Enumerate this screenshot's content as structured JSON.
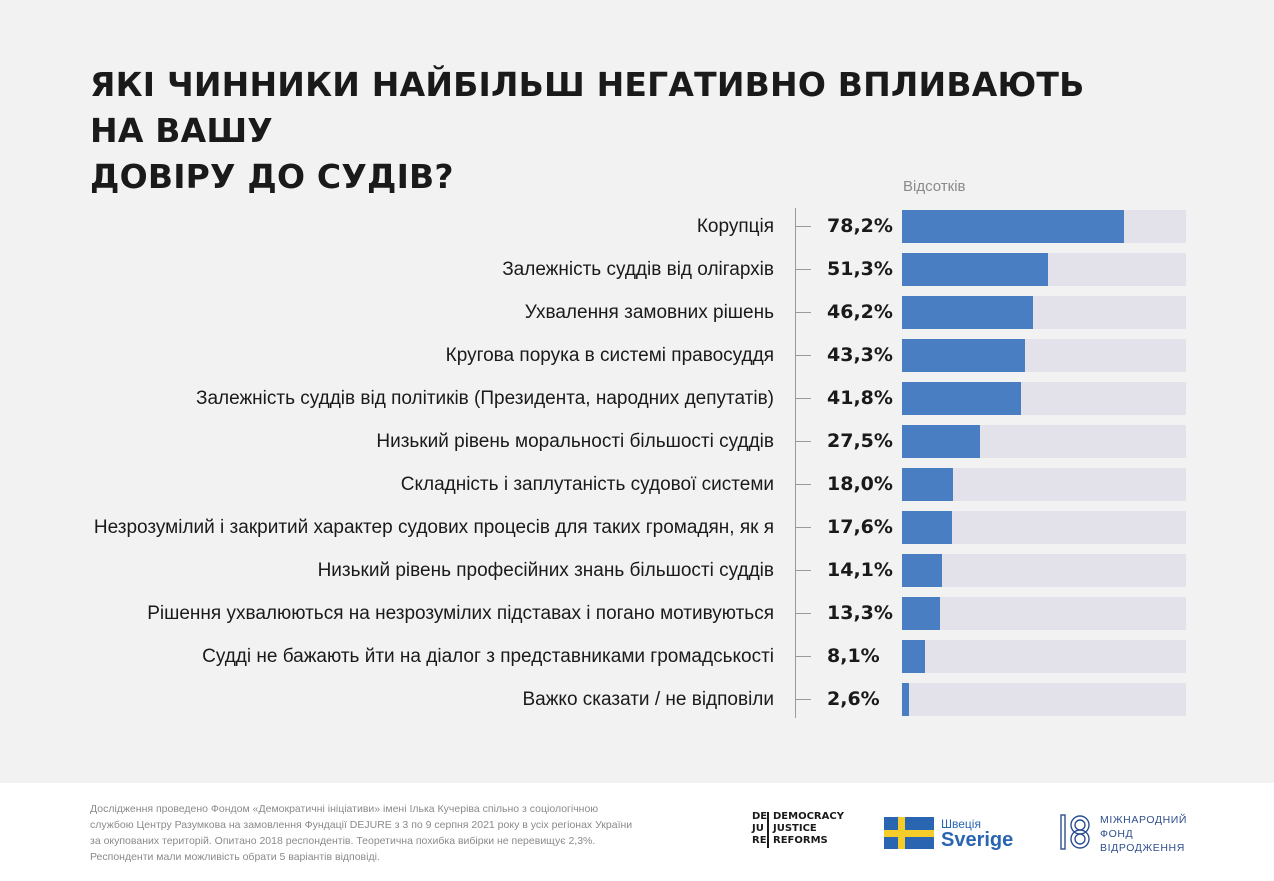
{
  "title_lines": [
    "ЯКІ ЧИННИКИ НАЙБІЛЬШ НЕГАТИВНО ВПЛИВАЮТЬ НА ВАШУ",
    "ДОВІРУ ДО СУДІВ?"
  ],
  "unit_label": "Відсотків",
  "colors": {
    "bar": "#4a7ec2",
    "track": "#e3e2ea",
    "background": "#f2f2f2"
  },
  "chart_data": {
    "type": "bar",
    "orientation": "horizontal",
    "title": "ЯКІ ЧИННИКИ НАЙБІЛЬШ НЕГАТИВНО ВПЛИВАЮТЬ НА ВАШУ ДОВІРУ ДО СУДІВ?",
    "xlabel": "Відсотків",
    "ylabel": "",
    "xlim": [
      0,
      100
    ],
    "grid": false,
    "legend": "none",
    "categories": [
      "Корупція",
      "Залежність суддів від олігархів",
      "Ухвалення замовних рішень",
      "Кругова порука в системі правосуддя",
      "Залежність суддів від політиків (Президента, народних депутатів)",
      "Низький рівень моральності більшості суддів",
      "Складність і заплутаність судової системи",
      "Незрозумілий і закритий характер судових процесів для таких громадян, як я",
      "Низький рівень професійних знань більшості суддів",
      "Рішення ухвалюються на незрозумілих підставах і погано мотивуються",
      "Судді не бажають йти на діалог з представниками громадськості",
      "Важко сказати / не відповіли"
    ],
    "values": [
      78.2,
      51.3,
      46.2,
      43.3,
      41.8,
      27.5,
      18.0,
      17.6,
      14.1,
      13.3,
      8.1,
      2.6
    ],
    "value_labels": [
      "78,2%",
      "51,3%",
      "46,2%",
      "43,3%",
      "41,8%",
      "27,5%",
      "18,0%",
      "17,6%",
      "14,1%",
      "13,3%",
      "8,1%",
      "2,6%"
    ]
  },
  "footer": {
    "note": "Дослідження проведено Фондом «Демократичні ініціативи» імені Ілька Кучеріва спільно з соціологічною службою Центру Разумкова на замовлення Фундації DEJURE з 3 по 9 серпня 2021 року в усіх регіонах України за окупованих територій. Опитано 2018 респондентів. Теоретична похибка вибірки не перевищує 2,3%. Респонденти мали можливість обрати 5 варіантів відповіді.",
    "dejure": {
      "stack": [
        "DE",
        "JU",
        "RE"
      ],
      "words": [
        "DEMOCRACY",
        "JUSTICE",
        "REFORMS"
      ]
    },
    "sweden": {
      "small": "Швеція",
      "big": "Sverige"
    },
    "irf": [
      "МІЖНАРОДНИЙ",
      "ФОНД",
      "ВІДРОДЖЕННЯ"
    ]
  }
}
